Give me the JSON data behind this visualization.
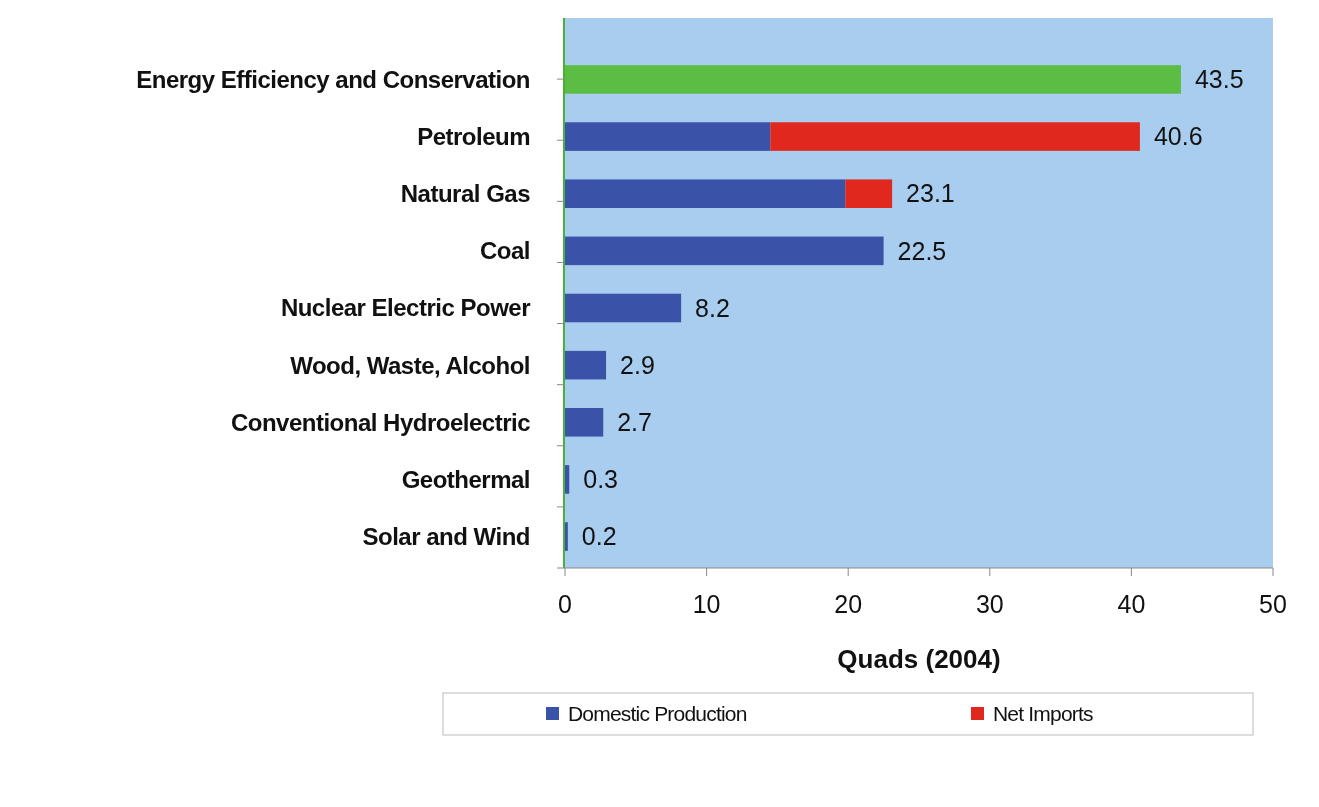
{
  "chart_data": {
    "type": "bar",
    "orientation": "horizontal",
    "stacked": true,
    "xlabel": "Quads (2004)",
    "categories": [
      "Energy Efficiency and Conservation",
      "Petroleum",
      "Natural Gas",
      "Coal",
      "Nuclear Electric Power",
      "Wood, Waste, Alcohol",
      "Conventional Hydroelectric",
      "Geothermal",
      "Solar and Wind"
    ],
    "series": [
      {
        "name": "Domestic Production",
        "color": "#3a52a8",
        "colors": [
          "#5cbd45",
          "#3a52a8",
          "#3a52a8",
          "#3a52a8",
          "#3a52a8",
          "#3a52a8",
          "#3a52a8",
          "#3a52a8",
          "#3a52a8"
        ],
        "values": [
          43.5,
          14.5,
          19.8,
          22.5,
          8.2,
          2.9,
          2.7,
          0.3,
          0.2
        ]
      },
      {
        "name": "Net Imports",
        "color": "#e0281e",
        "values": [
          null,
          26.1,
          3.3,
          null,
          null,
          null,
          null,
          null,
          null
        ]
      }
    ],
    "totals": [
      "43.5",
      "40.6",
      "23.1",
      "22.5",
      "8.2",
      "2.9",
      "2.7",
      "0.3",
      "0.2"
    ],
    "xlim": [
      0,
      50
    ],
    "xticks": [
      0,
      10,
      20,
      30,
      40,
      50
    ],
    "grid": false,
    "legend": "bottom"
  }
}
